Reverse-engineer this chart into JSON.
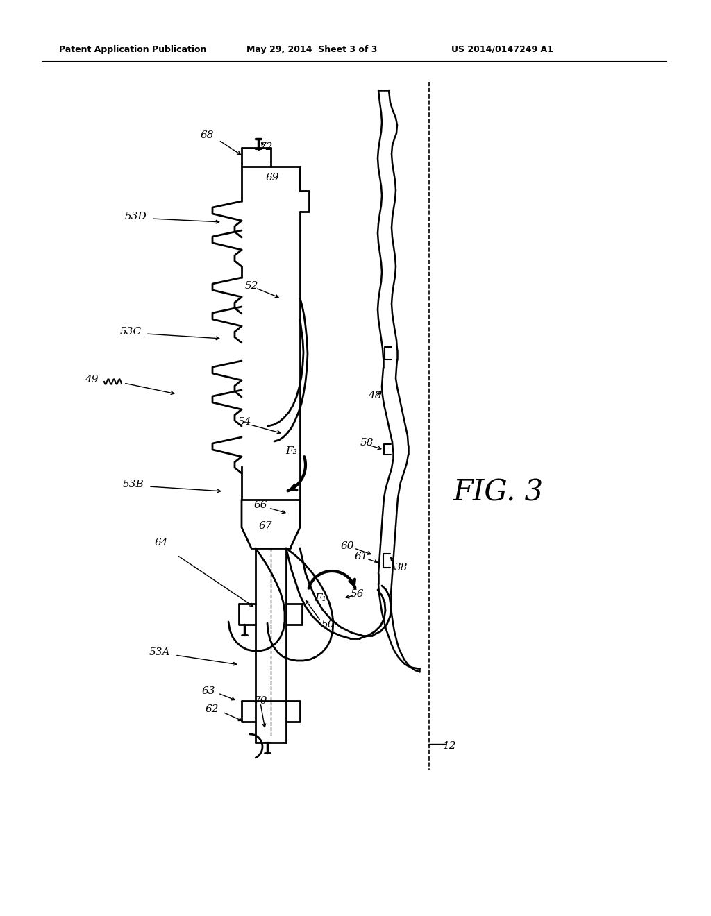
{
  "title_left": "Patent Application Publication",
  "title_mid": "May 29, 2014  Sheet 3 of 3",
  "title_right": "US 2014/0147249 A1",
  "fig_label": "FIG. 3",
  "background": "#ffffff",
  "line_color": "#000000"
}
